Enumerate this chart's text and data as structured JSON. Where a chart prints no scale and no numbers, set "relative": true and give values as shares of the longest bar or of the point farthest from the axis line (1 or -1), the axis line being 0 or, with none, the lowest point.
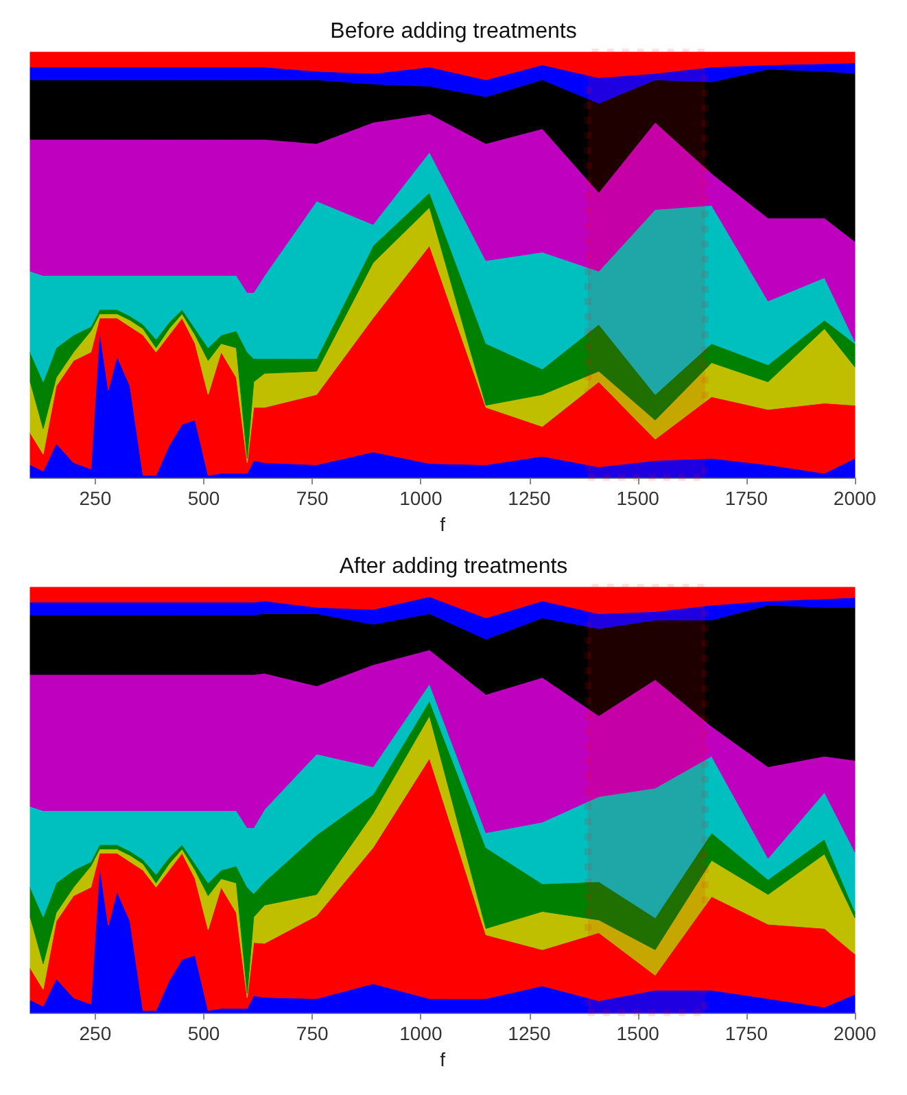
{
  "chart_data": [
    {
      "type": "area",
      "title": "Before adding treatments",
      "xlabel": "f",
      "stacked": true,
      "relative": true,
      "xlim": [
        100,
        2000
      ],
      "xticks": [
        250,
        500,
        750,
        1000,
        1250,
        1500,
        1750,
        2000
      ],
      "x": [
        100,
        130,
        160,
        200,
        240,
        260,
        280,
        300,
        330,
        360,
        390,
        420,
        450,
        480,
        510,
        540,
        575,
        600,
        615,
        640,
        760,
        890,
        1020,
        1150,
        1280,
        1410,
        1540,
        1670,
        1800,
        1930,
        2000
      ],
      "series": [
        {
          "color": "#0000ff",
          "values": [
            0.03,
            0.015,
            0.08,
            0.035,
            0.02,
            0.345,
            0.205,
            0.285,
            0.215,
            0.005,
            0.005,
            0.075,
            0.125,
            0.135,
            0.005,
            0.01,
            0.01,
            0.01,
            0.04,
            0.035,
            0.03,
            0.06,
            0.033,
            0.03,
            0.05,
            0.025,
            0.04,
            0.045,
            0.03,
            0.01,
            0.045
          ]
        },
        {
          "color": "#ff0000",
          "values": [
            0.075,
            0.04,
            0.135,
            0.24,
            0.275,
            0.03,
            0.17,
            0.09,
            0.14,
            0.33,
            0.29,
            0.26,
            0.25,
            0.18,
            0.19,
            0.285,
            0.225,
            0.025,
            0.125,
            0.13,
            0.165,
            0.315,
            0.512,
            0.135,
            0.07,
            0.2,
            0.05,
            0.145,
            0.13,
            0.165,
            0.125
          ]
        },
        {
          "color": "#bfbf00",
          "values": [
            0.12,
            0.06,
            0.02,
            0.02,
            0.05,
            0.01,
            0.01,
            0.01,
            0.015,
            0.015,
            0.01,
            0.015,
            0.01,
            0.02,
            0.08,
            0.02,
            0.07,
            0.01,
            0.06,
            0.08,
            0.055,
            0.13,
            0.09,
            0.005,
            0.075,
            0.025,
            0.045,
            0.08,
            0.065,
            0.175,
            0.09
          ]
        },
        {
          "color": "#008000",
          "values": [
            0.07,
            0.11,
            0.07,
            0.04,
            0.01,
            0.01,
            0.01,
            0.01,
            0.01,
            0.01,
            0.02,
            0.015,
            0.01,
            0.015,
            0.03,
            0.02,
            0.04,
            0.25,
            0.055,
            0.035,
            0.03,
            0.04,
            0.035,
            0.145,
            0.06,
            0.11,
            0.06,
            0.045,
            0.04,
            0.02,
            0.055
          ]
        },
        {
          "color": "#00bfbf",
          "values": [
            0.19,
            0.25,
            0.17,
            0.14,
            0.12,
            0.08,
            0.08,
            0.08,
            0.095,
            0.115,
            0.15,
            0.11,
            0.08,
            0.125,
            0.17,
            0.14,
            0.13,
            0.14,
            0.155,
            0.195,
            0.37,
            0.05,
            0.095,
            0.195,
            0.275,
            0.125,
            0.435,
            0.325,
            0.15,
            0.1,
            0.005
          ]
        },
        {
          "color": "#bf00bf",
          "values": [
            0.31,
            0.32,
            0.32,
            0.32,
            0.32,
            0.32,
            0.32,
            0.32,
            0.32,
            0.32,
            0.32,
            0.32,
            0.32,
            0.32,
            0.32,
            0.32,
            0.32,
            0.36,
            0.36,
            0.32,
            0.135,
            0.24,
            0.09,
            0.275,
            0.29,
            0.185,
            0.205,
            0.075,
            0.195,
            0.14,
            0.235
          ]
        },
        {
          "color": "#000000",
          "values": [
            0.14,
            0.14,
            0.14,
            0.14,
            0.14,
            0.14,
            0.14,
            0.14,
            0.14,
            0.14,
            0.14,
            0.14,
            0.14,
            0.14,
            0.14,
            0.14,
            0.14,
            0.14,
            0.14,
            0.14,
            0.15,
            0.09,
            0.065,
            0.11,
            0.115,
            0.21,
            0.1,
            0.215,
            0.35,
            0.345,
            0.395
          ]
        },
        {
          "color": "#0000ff",
          "values": [
            0.03,
            0.03,
            0.03,
            0.03,
            0.03,
            0.03,
            0.03,
            0.03,
            0.03,
            0.03,
            0.03,
            0.03,
            0.03,
            0.03,
            0.03,
            0.03,
            0.03,
            0.03,
            0.03,
            0.03,
            0.02,
            0.025,
            0.045,
            0.04,
            0.035,
            0.06,
            0.015,
            0.035,
            0.01,
            0.018,
            0.025
          ]
        },
        {
          "color": "#ff0000",
          "values": [
            0.035,
            0.035,
            0.035,
            0.035,
            0.035,
            0.035,
            0.035,
            0.035,
            0.035,
            0.035,
            0.035,
            0.035,
            0.035,
            0.035,
            0.035,
            0.035,
            0.035,
            0.035,
            0.035,
            0.035,
            0.045,
            0.05,
            0.035,
            0.065,
            0.03,
            0.06,
            0.05,
            0.035,
            0.03,
            0.027,
            0.025
          ]
        }
      ],
      "bands": [
        {
          "axis": "x",
          "from": 1385,
          "to": 1655,
          "color": "#ff0000"
        }
      ]
    },
    {
      "type": "area",
      "title": "After adding treatments",
      "xlabel": "f",
      "stacked": true,
      "relative": true,
      "xlim": [
        100,
        2000
      ],
      "xticks": [
        250,
        500,
        750,
        1000,
        1250,
        1500,
        1750,
        2000
      ],
      "x": [
        100,
        130,
        160,
        200,
        240,
        260,
        280,
        300,
        330,
        360,
        390,
        420,
        450,
        480,
        510,
        540,
        575,
        600,
        615,
        640,
        760,
        890,
        1020,
        1150,
        1280,
        1410,
        1540,
        1670,
        1800,
        1930,
        2000
      ],
      "series": [
        {
          "color": "#0000ff",
          "values": [
            0.03,
            0.015,
            0.08,
            0.035,
            0.02,
            0.345,
            0.205,
            0.285,
            0.215,
            0.005,
            0.005,
            0.075,
            0.125,
            0.135,
            0.005,
            0.01,
            0.01,
            0.01,
            0.04,
            0.036,
            0.033,
            0.068,
            0.033,
            0.033,
            0.063,
            0.028,
            0.053,
            0.053,
            0.033,
            0.013,
            0.043
          ]
        },
        {
          "color": "#ff0000",
          "values": [
            0.075,
            0.04,
            0.135,
            0.24,
            0.275,
            0.03,
            0.17,
            0.09,
            0.14,
            0.33,
            0.29,
            0.26,
            0.25,
            0.18,
            0.19,
            0.285,
            0.225,
            0.025,
            0.125,
            0.127,
            0.195,
            0.32,
            0.565,
            0.15,
            0.085,
            0.16,
            0.035,
            0.22,
            0.175,
            0.185,
            0.095
          ]
        },
        {
          "color": "#bfbf00",
          "values": [
            0.12,
            0.06,
            0.02,
            0.02,
            0.05,
            0.01,
            0.01,
            0.01,
            0.015,
            0.015,
            0.01,
            0.015,
            0.01,
            0.02,
            0.08,
            0.02,
            0.07,
            0.01,
            0.06,
            0.09,
            0.05,
            0.08,
            0.1,
            0.015,
            0.09,
            0.03,
            0.06,
            0.085,
            0.07,
            0.175,
            0.085
          ]
        },
        {
          "color": "#008000",
          "values": [
            0.07,
            0.11,
            0.07,
            0.04,
            0.01,
            0.01,
            0.01,
            0.01,
            0.01,
            0.01,
            0.02,
            0.015,
            0.01,
            0.015,
            0.03,
            0.02,
            0.04,
            0.25,
            0.055,
            0.055,
            0.14,
            0.045,
            0.035,
            0.19,
            0.065,
            0.09,
            0.075,
            0.065,
            0.035,
            0.035,
            0.015
          ]
        },
        {
          "color": "#00bfbf",
          "values": [
            0.19,
            0.25,
            0.17,
            0.14,
            0.12,
            0.08,
            0.08,
            0.08,
            0.095,
            0.115,
            0.15,
            0.11,
            0.08,
            0.125,
            0.17,
            0.14,
            0.13,
            0.14,
            0.155,
            0.17,
            0.19,
            0.065,
            0.04,
            0.035,
            0.145,
            0.2,
            0.305,
            0.18,
            0.05,
            0.11,
            0.14
          ]
        },
        {
          "color": "#bf00bf",
          "values": [
            0.31,
            0.32,
            0.32,
            0.32,
            0.32,
            0.32,
            0.32,
            0.32,
            0.32,
            0.32,
            0.32,
            0.32,
            0.32,
            0.32,
            0.32,
            0.32,
            0.32,
            0.36,
            0.36,
            0.32,
            0.16,
            0.24,
            0.08,
            0.325,
            0.34,
            0.19,
            0.255,
            0.07,
            0.215,
            0.085,
            0.215
          ]
        },
        {
          "color": "#000000",
          "values": [
            0.14,
            0.14,
            0.14,
            0.14,
            0.14,
            0.14,
            0.14,
            0.14,
            0.14,
            0.14,
            0.14,
            0.14,
            0.14,
            0.14,
            0.14,
            0.14,
            0.14,
            0.14,
            0.14,
            0.14,
            0.17,
            0.095,
            0.085,
            0.13,
            0.14,
            0.205,
            0.14,
            0.25,
            0.38,
            0.35,
            0.36
          ]
        },
        {
          "color": "#0000ff",
          "values": [
            0.03,
            0.03,
            0.03,
            0.03,
            0.03,
            0.03,
            0.03,
            0.03,
            0.03,
            0.03,
            0.03,
            0.03,
            0.03,
            0.03,
            0.03,
            0.03,
            0.03,
            0.03,
            0.03,
            0.03,
            0.015,
            0.035,
            0.04,
            0.05,
            0.04,
            0.035,
            0.02,
            0.035,
            0.01,
            0.02,
            0.023
          ]
        },
        {
          "color": "#ff0000",
          "values": [
            0.035,
            0.035,
            0.035,
            0.035,
            0.035,
            0.035,
            0.035,
            0.035,
            0.035,
            0.035,
            0.035,
            0.035,
            0.035,
            0.035,
            0.035,
            0.035,
            0.035,
            0.035,
            0.035,
            0.032,
            0.047,
            0.052,
            0.022,
            0.072,
            0.032,
            0.062,
            0.057,
            0.042,
            0.032,
            0.027,
            0.024
          ]
        }
      ],
      "bands": [
        {
          "axis": "x",
          "from": 1385,
          "to": 1655,
          "color": "#ff0000"
        }
      ]
    }
  ]
}
